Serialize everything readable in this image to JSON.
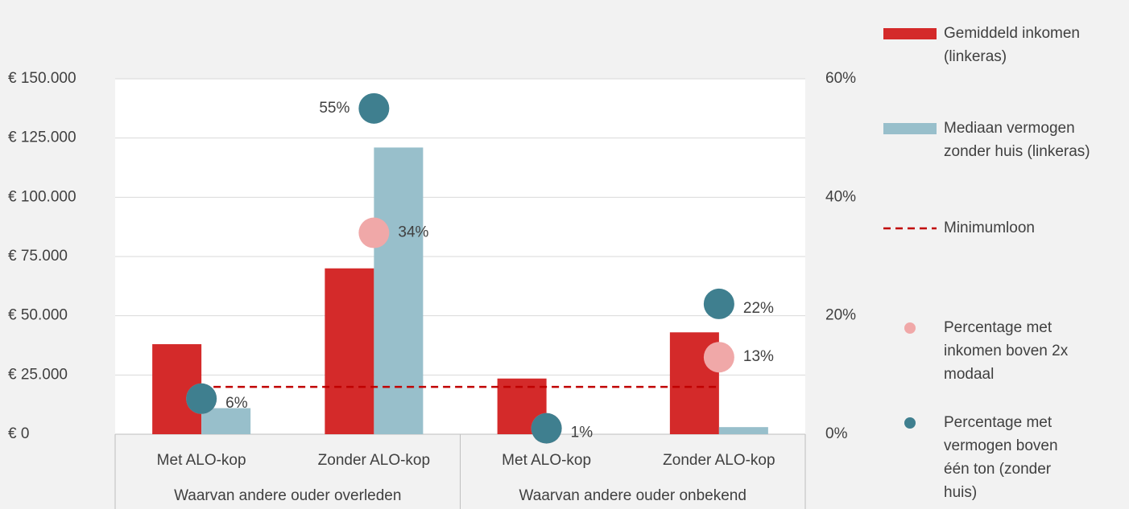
{
  "chart_data": {
    "type": "bar",
    "categories": [
      "Met ALO-kop",
      "Zonder ALO-kop",
      "Met ALO-kop",
      "Zonder ALO-kop"
    ],
    "groups": [
      "Waarvan andere ouder overleden",
      "Waarvan andere ouder onbekend"
    ],
    "ylim": [
      0,
      150000
    ],
    "yticks": [
      {
        "value": 0,
        "label": "€ 0"
      },
      {
        "value": 25000,
        "label": "€ 25.000"
      },
      {
        "value": 50000,
        "label": "€ 50.000"
      },
      {
        "value": 75000,
        "label": "€ 75.000"
      },
      {
        "value": 100000,
        "label": "€ 100.000"
      },
      {
        "value": 125000,
        "label": "€ 125.000"
      },
      {
        "value": 150000,
        "label": "€ 150.000"
      }
    ],
    "y2lim": [
      0,
      60
    ],
    "y2ticks": [
      {
        "value": 0,
        "label": "0%"
      },
      {
        "value": 20,
        "label": "20%"
      },
      {
        "value": 40,
        "label": "40%"
      },
      {
        "value": 60,
        "label": "60%"
      }
    ],
    "grid": true,
    "legend": "right",
    "series": [
      {
        "name": "Gemiddeld inkomen (linkeras)",
        "type": "bar",
        "color": "#d42a2a",
        "values": [
          38000,
          70000,
          23500,
          43000
        ]
      },
      {
        "name": "Mediaan vermogen zonder huis (linkeras)",
        "type": "bar",
        "color": "#98bfcb",
        "values": [
          11000,
          121000,
          0,
          3000
        ]
      },
      {
        "name": "Minimumloon",
        "type": "line",
        "color": "#c00000",
        "dashed": true,
        "values": [
          20000,
          20000,
          20000,
          20000
        ]
      },
      {
        "name": "Percentage met inkomen boven 2x modaal",
        "type": "scatter",
        "axis": "y2",
        "color": "#f0a8a8",
        "values": [
          6,
          34,
          1,
          13
        ],
        "value_labels": [
          null,
          "34%",
          null,
          "13%"
        ]
      },
      {
        "name": "Percentage met vermogen boven één ton (zonder huis)",
        "type": "scatter",
        "axis": "y2",
        "color": "#3f7f8f",
        "values": [
          6,
          55,
          1,
          22
        ],
        "value_labels": [
          "6%",
          "55%",
          "1%",
          "22%"
        ]
      }
    ]
  }
}
